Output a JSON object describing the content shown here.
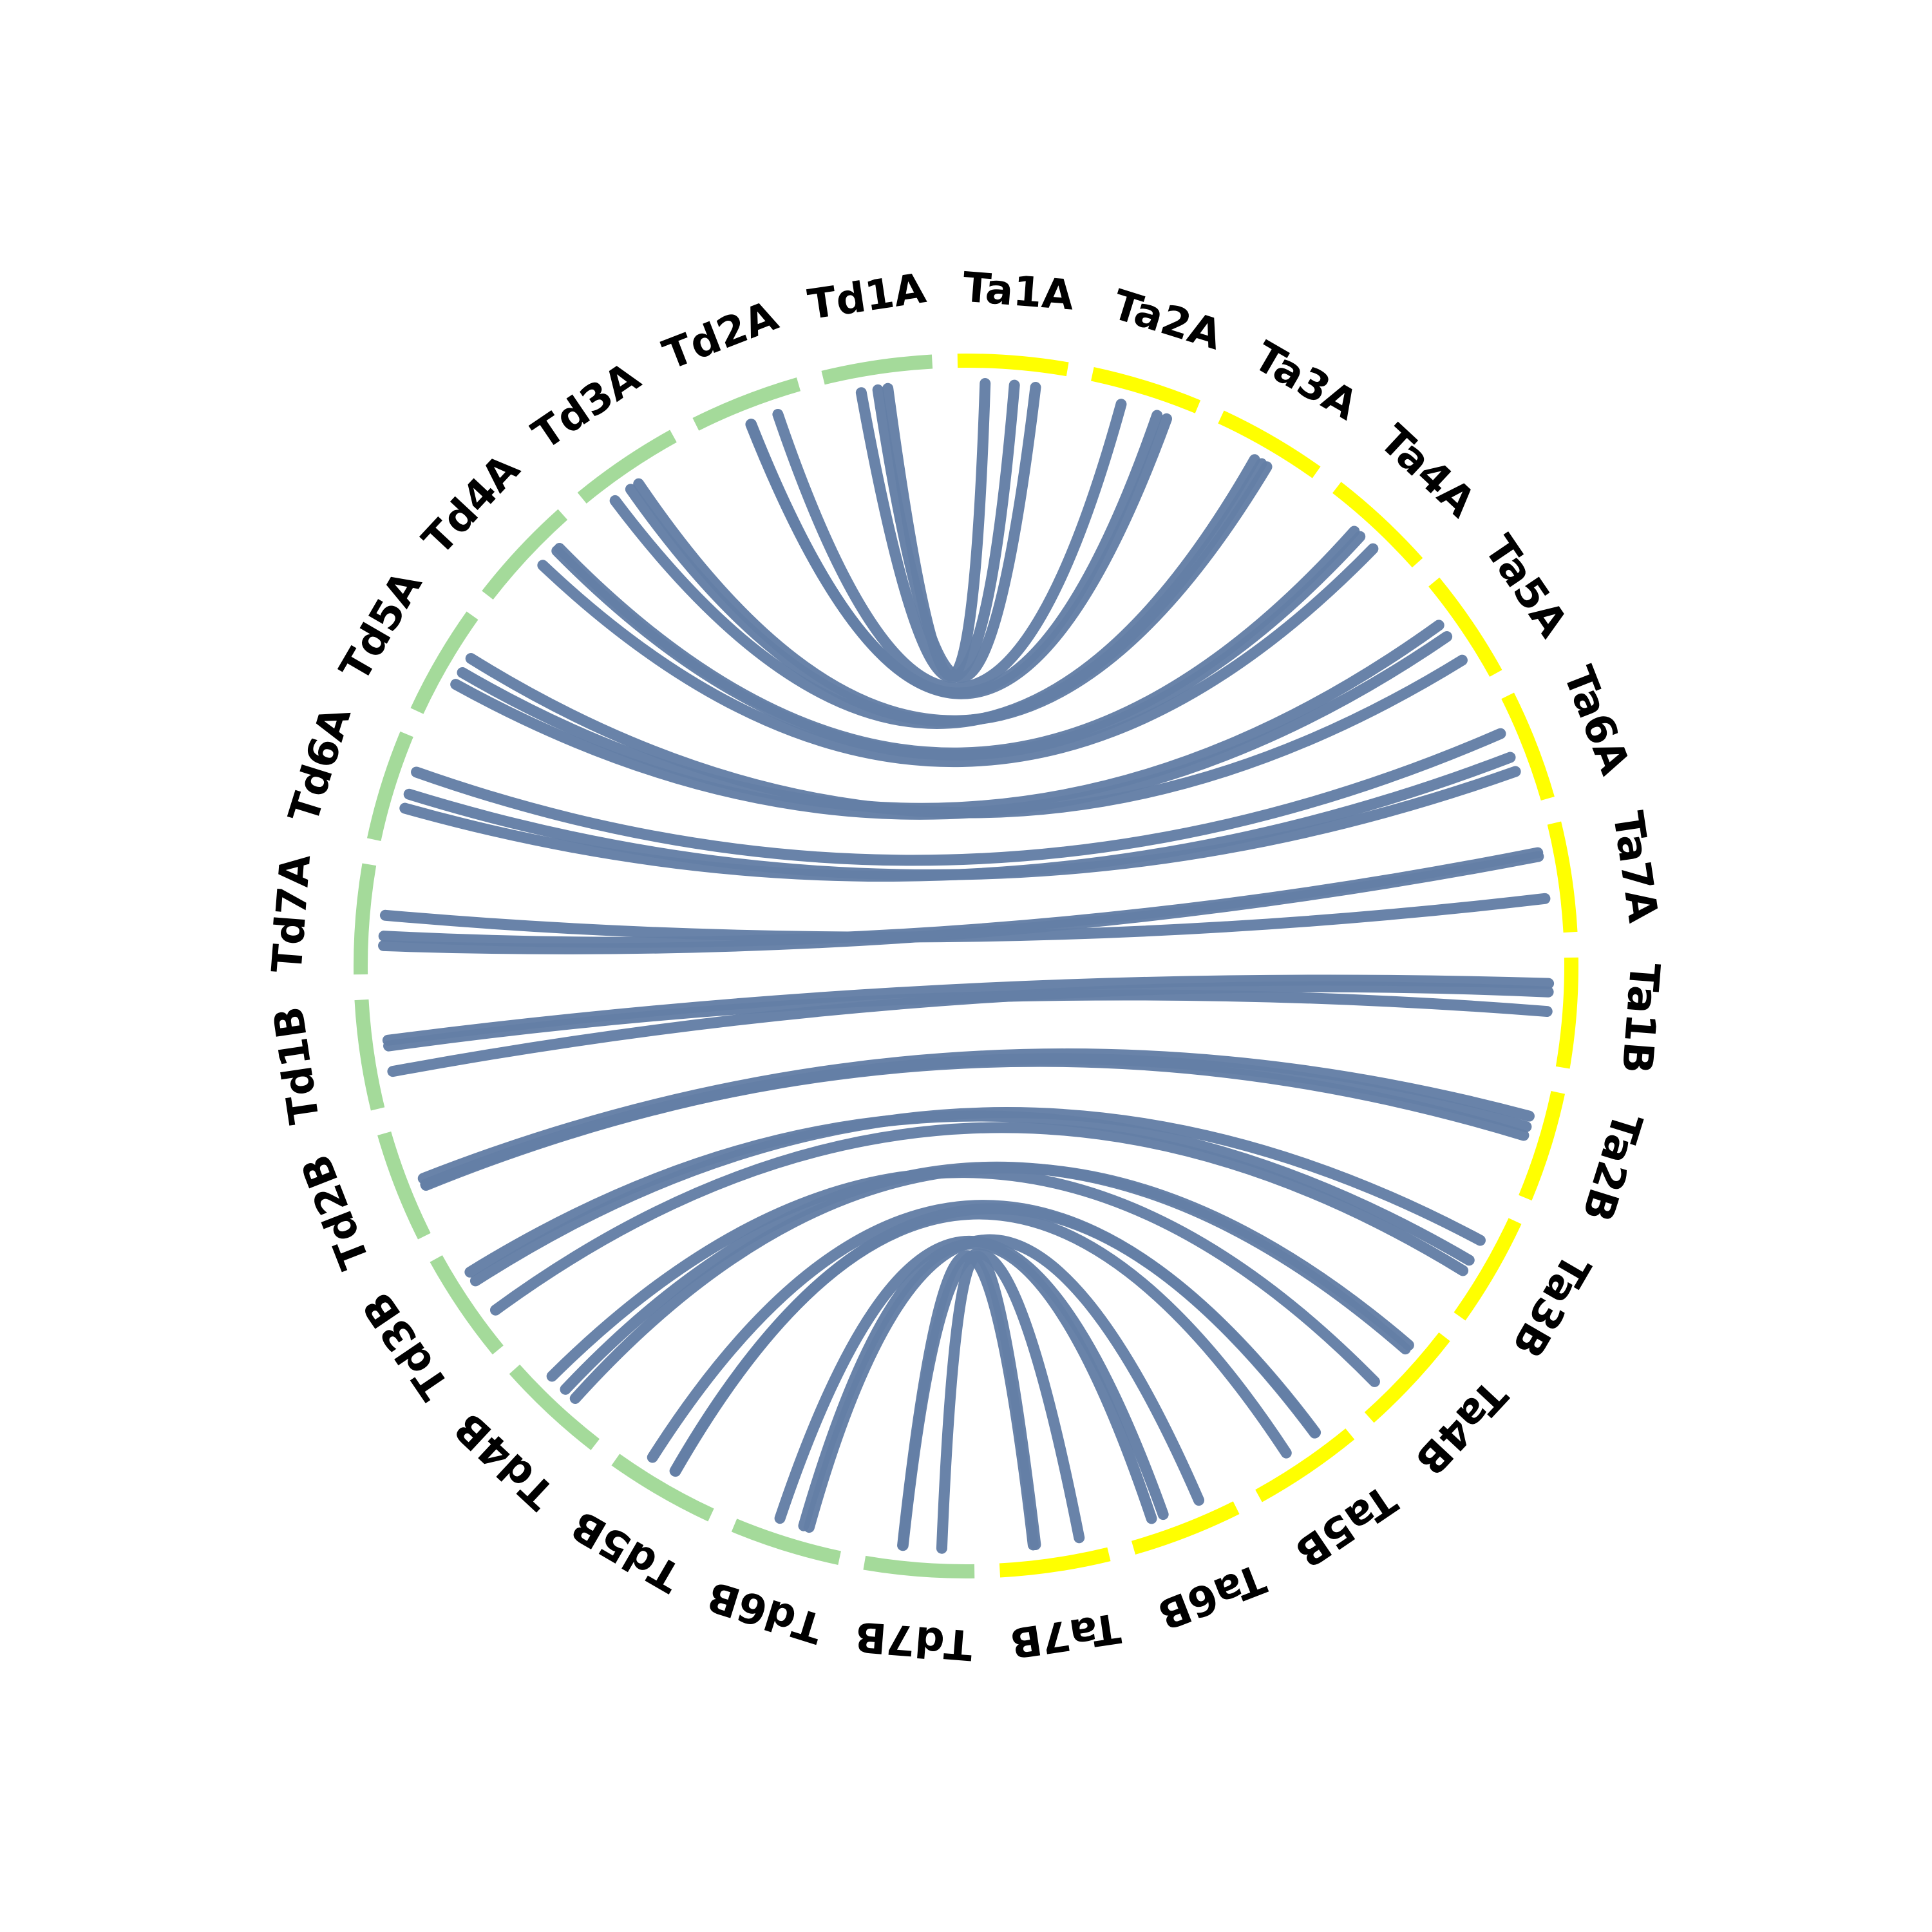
{
  "colors": {
    "td_segment": "#A4DA9A",
    "ta_segment": "#FFFF00",
    "link": "#647FA6",
    "label": "#000000"
  },
  "chromosomes": [
    {
      "id": "Ta1A",
      "group": "ta"
    },
    {
      "id": "Ta2A",
      "group": "ta"
    },
    {
      "id": "Ta3A",
      "group": "ta"
    },
    {
      "id": "Ta4A",
      "group": "ta"
    },
    {
      "id": "Ta5A",
      "group": "ta"
    },
    {
      "id": "Ta6A",
      "group": "ta"
    },
    {
      "id": "Ta7A",
      "group": "ta"
    },
    {
      "id": "Ta1B",
      "group": "ta"
    },
    {
      "id": "Ta2B",
      "group": "ta"
    },
    {
      "id": "Ta3B",
      "group": "ta"
    },
    {
      "id": "Ta4B",
      "group": "ta"
    },
    {
      "id": "Ta5B",
      "group": "ta"
    },
    {
      "id": "Ta6B",
      "group": "ta"
    },
    {
      "id": "Ta7B",
      "group": "ta"
    },
    {
      "id": "Td7B",
      "group": "td"
    },
    {
      "id": "Td6B",
      "group": "td"
    },
    {
      "id": "Td5B",
      "group": "td"
    },
    {
      "id": "Td4B",
      "group": "td"
    },
    {
      "id": "Td3B",
      "group": "td"
    },
    {
      "id": "Td2B",
      "group": "td"
    },
    {
      "id": "Td1B",
      "group": "td"
    },
    {
      "id": "Td7A",
      "group": "td"
    },
    {
      "id": "Td6A",
      "group": "td"
    },
    {
      "id": "Td5A",
      "group": "td"
    },
    {
      "id": "Td4A",
      "group": "td"
    },
    {
      "id": "Td3A",
      "group": "td"
    },
    {
      "id": "Td2A",
      "group": "td"
    },
    {
      "id": "Td1A",
      "group": "td"
    }
  ],
  "links": [
    {
      "from": "Ta1A",
      "to": "Td1A",
      "width": 3
    },
    {
      "from": "Ta2A",
      "to": "Td2A",
      "width": 3
    },
    {
      "from": "Ta3A",
      "to": "Td3A",
      "width": 3
    },
    {
      "from": "Ta4A",
      "to": "Td4A",
      "width": 3
    },
    {
      "from": "Ta5A",
      "to": "Td5A",
      "width": 3
    },
    {
      "from": "Ta6A",
      "to": "Td6A",
      "width": 3
    },
    {
      "from": "Ta7A",
      "to": "Td7A",
      "width": 3
    },
    {
      "from": "Ta1B",
      "to": "Td1B",
      "width": 3
    },
    {
      "from": "Ta2B",
      "to": "Td2B",
      "width": 3
    },
    {
      "from": "Ta3B",
      "to": "Td3B",
      "width": 3
    },
    {
      "from": "Ta4B",
      "to": "Td4B",
      "width": 3
    },
    {
      "from": "Ta5B",
      "to": "Td5B",
      "width": 3
    },
    {
      "from": "Ta6B",
      "to": "Td6B",
      "width": 3
    },
    {
      "from": "Ta7B",
      "to": "Td7B",
      "width": 3
    }
  ]
}
